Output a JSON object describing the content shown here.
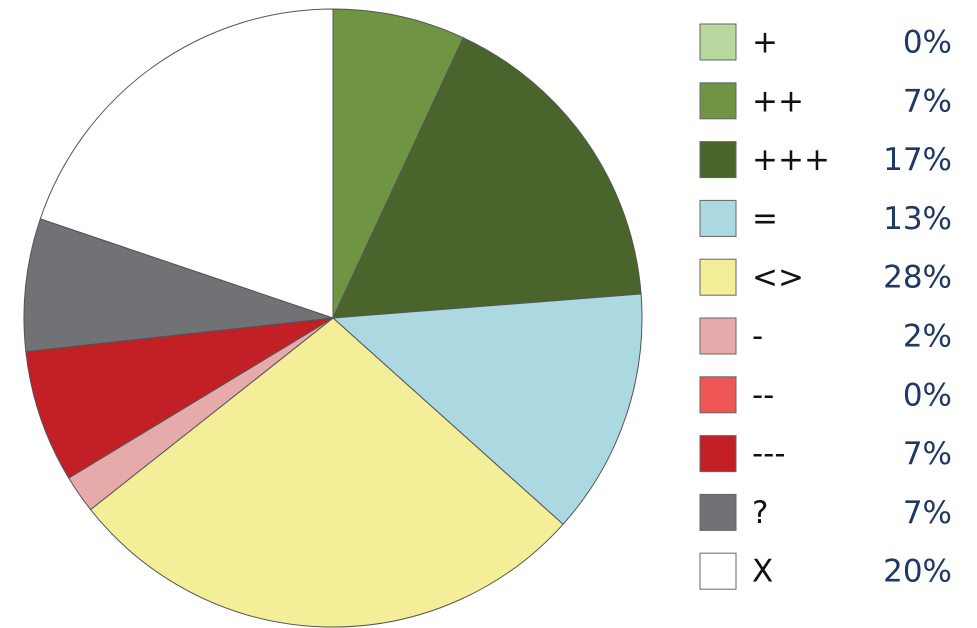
{
  "chart_data": {
    "type": "pie",
    "categories": [
      "+",
      "++",
      "+++",
      "=",
      "<>",
      "-",
      "--",
      "---",
      "?",
      "X"
    ],
    "values": [
      0,
      7,
      17,
      13,
      28,
      2,
      0,
      7,
      7,
      20
    ],
    "value_labels": [
      "0%",
      "7%",
      "17%",
      "13%",
      "28%",
      "2%",
      "0%",
      "7%",
      "7%",
      "20%"
    ],
    "colors": [
      "#b9d89f",
      "#6f9444",
      "#4a652c",
      "#acd8e1",
      "#f5ee98",
      "#e6aaaa",
      "#ef5656",
      "#c21f27",
      "#717276",
      "#ffffff"
    ],
    "legend": "right"
  }
}
